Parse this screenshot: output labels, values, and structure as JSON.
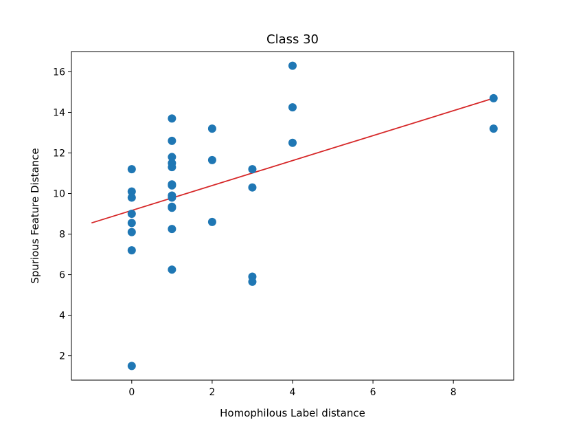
{
  "chart_data": {
    "type": "scatter",
    "title": "Class 30",
    "xlabel": "Homophilous Label distance",
    "ylabel": "Spurious Feature Distance",
    "xlim": [
      -1.5,
      9.5
    ],
    "ylim": [
      0.8,
      17.0
    ],
    "xticks": [
      0,
      2,
      4,
      6,
      8
    ],
    "yticks": [
      2,
      4,
      6,
      8,
      10,
      12,
      14,
      16
    ],
    "grid": false,
    "legend": "none",
    "point_color": "#1f77b4",
    "line_color": "#d62728",
    "points": [
      {
        "x": 0,
        "y": 11.2
      },
      {
        "x": 0,
        "y": 10.1
      },
      {
        "x": 0,
        "y": 9.8
      },
      {
        "x": 0,
        "y": 9.0
      },
      {
        "x": 0,
        "y": 8.55
      },
      {
        "x": 0,
        "y": 8.1
      },
      {
        "x": 0,
        "y": 7.2
      },
      {
        "x": 0,
        "y": 1.5
      },
      {
        "x": 1,
        "y": 13.7
      },
      {
        "x": 1,
        "y": 12.6
      },
      {
        "x": 1,
        "y": 11.8
      },
      {
        "x": 1,
        "y": 11.5
      },
      {
        "x": 1,
        "y": 11.3
      },
      {
        "x": 1,
        "y": 10.45
      },
      {
        "x": 1,
        "y": 10.4
      },
      {
        "x": 1,
        "y": 9.9
      },
      {
        "x": 1,
        "y": 9.8
      },
      {
        "x": 1,
        "y": 9.35
      },
      {
        "x": 1,
        "y": 9.3
      },
      {
        "x": 1,
        "y": 8.25
      },
      {
        "x": 1,
        "y": 6.25
      },
      {
        "x": 2,
        "y": 13.2
      },
      {
        "x": 2,
        "y": 11.65
      },
      {
        "x": 2,
        "y": 8.6
      },
      {
        "x": 3,
        "y": 11.2
      },
      {
        "x": 3,
        "y": 10.3
      },
      {
        "x": 3,
        "y": 5.9
      },
      {
        "x": 3,
        "y": 5.65
      },
      {
        "x": 4,
        "y": 16.3
      },
      {
        "x": 4,
        "y": 14.25
      },
      {
        "x": 4,
        "y": 12.5
      },
      {
        "x": 9,
        "y": 14.7
      },
      {
        "x": 9,
        "y": 13.2
      }
    ],
    "fit_line": {
      "x": [
        -1,
        9
      ],
      "y": [
        8.55,
        14.7
      ]
    }
  }
}
